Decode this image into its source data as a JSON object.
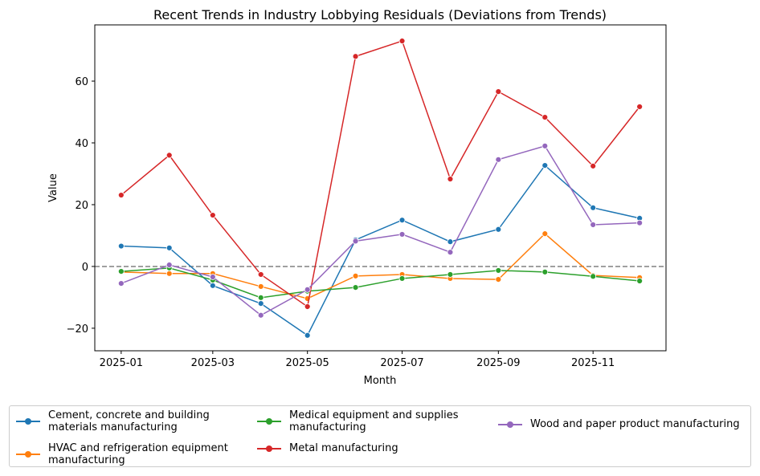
{
  "chart_data": {
    "type": "line",
    "title": "Recent Trends in Industry Lobbying Residuals (Deviations from Trends)",
    "xlabel": "Month",
    "ylabel": "Value",
    "x": [
      "2025-01",
      "2025-02",
      "2025-03",
      "2025-04",
      "2025-05",
      "2025-06",
      "2025-07",
      "2025-08",
      "2025-09",
      "2025-10",
      "2025-11",
      "2025-12"
    ],
    "xticks": [
      "2025-01",
      "2025-03",
      "2025-05",
      "2025-07",
      "2025-09",
      "2025-11"
    ],
    "yticks": [
      -20,
      0,
      20,
      40,
      60
    ],
    "ylim": [
      -27.3,
      78.2
    ],
    "reference_line": {
      "y": 0,
      "style": "dashed",
      "color": "#808080"
    },
    "grid": false,
    "legend_placement": "bottom",
    "series": [
      {
        "name": "Cement, concrete and building materials manufacturing",
        "label_lines": [
          "Cement, concrete and building",
          "materials manufacturing"
        ],
        "color": "#1f77b4",
        "values": [
          6.6,
          6.0,
          -6.2,
          -12.0,
          -22.3,
          8.6,
          15.0,
          8.0,
          12.0,
          32.7,
          19.0,
          15.6
        ]
      },
      {
        "name": "HVAC and refrigeration equipment manufacturing",
        "label_lines": [
          "HVAC and refrigeration equipment",
          "manufacturing"
        ],
        "color": "#ff7f0e",
        "values": [
          -1.8,
          -2.3,
          -2.3,
          -6.5,
          -10.4,
          -3.1,
          -2.6,
          -3.9,
          -4.2,
          10.6,
          -2.9,
          -3.6
        ]
      },
      {
        "name": "Medical equipment and supplies manufacturing",
        "label_lines": [
          "Medical equipment and supplies",
          "manufacturing"
        ],
        "color": "#2ca02c",
        "values": [
          -1.6,
          -0.5,
          -4.4,
          -10.1,
          -8.0,
          -6.8,
          -3.9,
          -2.6,
          -1.3,
          -1.8,
          -3.2,
          -4.7
        ]
      },
      {
        "name": "Metal manufacturing",
        "label_lines": [
          "Metal manufacturing"
        ],
        "color": "#d62728",
        "values": [
          23.1,
          36.0,
          16.6,
          -2.6,
          -13.0,
          68.0,
          73.0,
          28.3,
          56.6,
          48.3,
          32.5,
          51.7
        ]
      },
      {
        "name": "Wood and paper product manufacturing",
        "label_lines": [
          "Wood and paper product manufacturing"
        ],
        "color": "#9467bd",
        "values": [
          -5.5,
          0.5,
          -3.4,
          -15.8,
          -7.5,
          8.2,
          10.4,
          4.6,
          34.6,
          39.0,
          13.5,
          14.1
        ]
      }
    ]
  }
}
